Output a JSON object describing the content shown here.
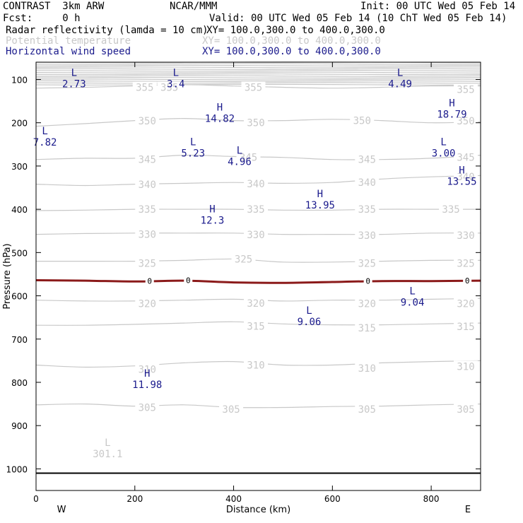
{
  "header": {
    "model": "CONTRAST  3km ARW",
    "org": "NCAR/MMM",
    "init": "Init: 00 UTC Wed 05 Feb 14",
    "fcst": "Fcst:     0 h",
    "valid": "Valid: 00 UTC Wed 05 Feb 14 (10 ChT Wed 05 Feb 14)",
    "fields": [
      {
        "name": "Radar reflectivity (lamda = 10 cm)",
        "xy": "XY= 100.0,300.0 to 400.0,300.0",
        "color": "#000000"
      },
      {
        "name": "Potential temperature",
        "xy": "XY= 100.0,300.0 to 400.0,300.0",
        "color": "#c8c8c8"
      },
      {
        "name": "Horizontal wind speed",
        "xy": "XY= 100.0,300.0 to 400.0,300.0",
        "color": "#1a1a8c"
      }
    ]
  },
  "chart_data": {
    "type": "cross-section contour",
    "xlabel": "Distance (km)",
    "ylabel": "Pressure (hPa)",
    "xlim": [
      0,
      900
    ],
    "ylim": [
      1050,
      60
    ],
    "x_ticks": [
      0,
      200,
      400,
      600,
      800
    ],
    "y_ticks": [
      100,
      200,
      300,
      400,
      500,
      600,
      700,
      800,
      900,
      1000
    ],
    "x_end_labels": {
      "left": "W",
      "right": "E"
    },
    "ground_pressure": 1010,
    "theta_contours": [
      {
        "value": 305,
        "pressures": [
          852,
          850,
          855,
          852,
          858,
          858,
          856,
          855,
          852,
          850
        ],
        "label_positions": [
          {
            "x": 225,
            "p": 858
          },
          {
            "x": 395,
            "p": 862
          },
          {
            "x": 670,
            "p": 862
          },
          {
            "x": 870,
            "p": 862
          }
        ]
      },
      {
        "value": 310,
        "pressures": [
          760,
          765,
          762,
          755,
          752,
          760,
          760,
          755,
          752,
          750
        ],
        "label_positions": [
          {
            "x": 225,
            "p": 770
          },
          {
            "x": 445,
            "p": 760
          },
          {
            "x": 670,
            "p": 767
          },
          {
            "x": 870,
            "p": 763
          }
        ]
      },
      {
        "value": 315,
        "pressures": [
          668,
          668,
          666,
          663,
          660,
          665,
          667,
          667,
          665,
          663
        ],
        "label_positions": [
          {
            "x": 445,
            "p": 670
          },
          {
            "x": 670,
            "p": 674
          },
          {
            "x": 870,
            "p": 671
          }
        ]
      },
      {
        "value": 320,
        "pressures": [
          610,
          612,
          612,
          610,
          608,
          612,
          610,
          610,
          608,
          606
        ],
        "label_positions": [
          {
            "x": 225,
            "p": 618
          },
          {
            "x": 445,
            "p": 617
          },
          {
            "x": 670,
            "p": 618
          },
          {
            "x": 870,
            "p": 618
          }
        ]
      },
      {
        "value": 325,
        "pressures": [
          520,
          520,
          520,
          518,
          515,
          522,
          522,
          520,
          518,
          518
        ],
        "label_positions": [
          {
            "x": 225,
            "p": 525
          },
          {
            "x": 420,
            "p": 515
          },
          {
            "x": 670,
            "p": 525
          },
          {
            "x": 870,
            "p": 525
          }
        ]
      },
      {
        "value": 330,
        "pressures": [
          458,
          456,
          455,
          455,
          455,
          458,
          458,
          458,
          455,
          455
        ],
        "label_positions": [
          {
            "x": 225,
            "p": 458
          },
          {
            "x": 445,
            "p": 459
          },
          {
            "x": 670,
            "p": 460
          },
          {
            "x": 870,
            "p": 460
          }
        ]
      },
      {
        "value": 335,
        "pressures": [
          403,
          402,
          400,
          400,
          400,
          402,
          402,
          400,
          400,
          400
        ],
        "label_positions": [
          {
            "x": 225,
            "p": 400
          },
          {
            "x": 445,
            "p": 400
          },
          {
            "x": 670,
            "p": 400
          },
          {
            "x": 840,
            "p": 400
          }
        ]
      },
      {
        "value": 340,
        "pressures": [
          342,
          345,
          342,
          340,
          338,
          340,
          338,
          330,
          325,
          322
        ],
        "label_positions": [
          {
            "x": 225,
            "p": 343
          },
          {
            "x": 445,
            "p": 341
          },
          {
            "x": 670,
            "p": 338
          },
          {
            "x": 870,
            "p": 325
          }
        ]
      },
      {
        "value": 345,
        "pressures": [
          285,
          282,
          282,
          275,
          278,
          280,
          285,
          285,
          282,
          275
        ],
        "label_positions": [
          {
            "x": 225,
            "p": 285
          },
          {
            "x": 430,
            "p": 280
          },
          {
            "x": 670,
            "p": 285
          },
          {
            "x": 870,
            "p": 280
          }
        ]
      },
      {
        "value": 350,
        "pressures": [
          208,
          202,
          195,
          190,
          195,
          195,
          192,
          195,
          200,
          198
        ],
        "label_positions": [
          {
            "x": 225,
            "p": 196
          },
          {
            "x": 445,
            "p": 200
          },
          {
            "x": 660,
            "p": 195
          },
          {
            "x": 870,
            "p": 196
          }
        ]
      },
      {
        "value": 355,
        "pressures": [
          120,
          118,
          115,
          112,
          115,
          118,
          120,
          118,
          115,
          115
        ],
        "label_positions": [
          {
            "x": 220,
            "p": 118
          },
          {
            "x": 270,
            "p": 118
          },
          {
            "x": 440,
            "p": 118
          },
          {
            "x": 870,
            "p": 123
          }
        ]
      }
    ],
    "theta_x": [
      0,
      100,
      200,
      300,
      400,
      500,
      600,
      700,
      800,
      900
    ],
    "stacked_isentropes_top": {
      "from_p": 60,
      "to_p": 112,
      "count": 14
    },
    "reflectivity_contour": {
      "value": "0",
      "color": "#8b1a1a",
      "points": [
        [
          0,
          564
        ],
        [
          100,
          565
        ],
        [
          200,
          567
        ],
        [
          300,
          565
        ],
        [
          400,
          569
        ],
        [
          500,
          570
        ],
        [
          600,
          568
        ],
        [
          700,
          566
        ],
        [
          800,
          566
        ],
        [
          900,
          565
        ]
      ],
      "label_positions": [
        {
          "x": 230,
          "p": 566
        },
        {
          "x": 308,
          "p": 564
        },
        {
          "x": 672,
          "p": 566
        },
        {
          "x": 873,
          "p": 565
        }
      ]
    },
    "wind_extrema": [
      {
        "type": "L",
        "value": "2.73",
        "x": 77,
        "p": 105,
        "color": "#1a1a8c"
      },
      {
        "type": "L",
        "value": "3.4",
        "x": 283,
        "p": 105,
        "color": "#1a1a8c"
      },
      {
        "type": "L",
        "value": "4.49",
        "x": 737,
        "p": 105,
        "color": "#1a1a8c"
      },
      {
        "type": "H",
        "value": "18.79",
        "x": 842,
        "p": 175,
        "color": "#1a1a8c"
      },
      {
        "type": "H",
        "value": "14.82",
        "x": 372,
        "p": 185,
        "color": "#1a1a8c"
      },
      {
        "type": "L",
        "value": "7.82",
        "x": 18,
        "p": 240,
        "color": "#1a1a8c"
      },
      {
        "type": "L",
        "value": "5.23",
        "x": 318,
        "p": 265,
        "color": "#1a1a8c"
      },
      {
        "type": "L",
        "value": "4.96",
        "x": 412,
        "p": 285,
        "color": "#1a1a8c"
      },
      {
        "type": "L",
        "value": "3.00",
        "x": 825,
        "p": 265,
        "color": "#1a1a8c"
      },
      {
        "type": "H",
        "value": "13.55",
        "x": 862,
        "p": 330,
        "color": "#1a1a8c"
      },
      {
        "type": "H",
        "value": "13.95",
        "x": 575,
        "p": 385,
        "color": "#1a1a8c"
      },
      {
        "type": "H",
        "value": "12.3",
        "x": 357,
        "p": 420,
        "color": "#1a1a8c"
      },
      {
        "type": "L",
        "value": "9.04",
        "x": 762,
        "p": 610,
        "color": "#1a1a8c"
      },
      {
        "type": "L",
        "value": "9.06",
        "x": 553,
        "p": 655,
        "color": "#1a1a8c"
      },
      {
        "type": "H",
        "value": "11.98",
        "x": 225,
        "p": 800,
        "color": "#1a1a8c"
      }
    ],
    "theta_extrema": [
      {
        "type": "L",
        "value": "301.1",
        "x": 145,
        "p": 960,
        "color": "#c8c8c8"
      }
    ],
    "colors": {
      "theta": "#c8c8c8",
      "wind_label": "#1a1a8c",
      "ground": "#000000",
      "axis": "#000000"
    }
  }
}
